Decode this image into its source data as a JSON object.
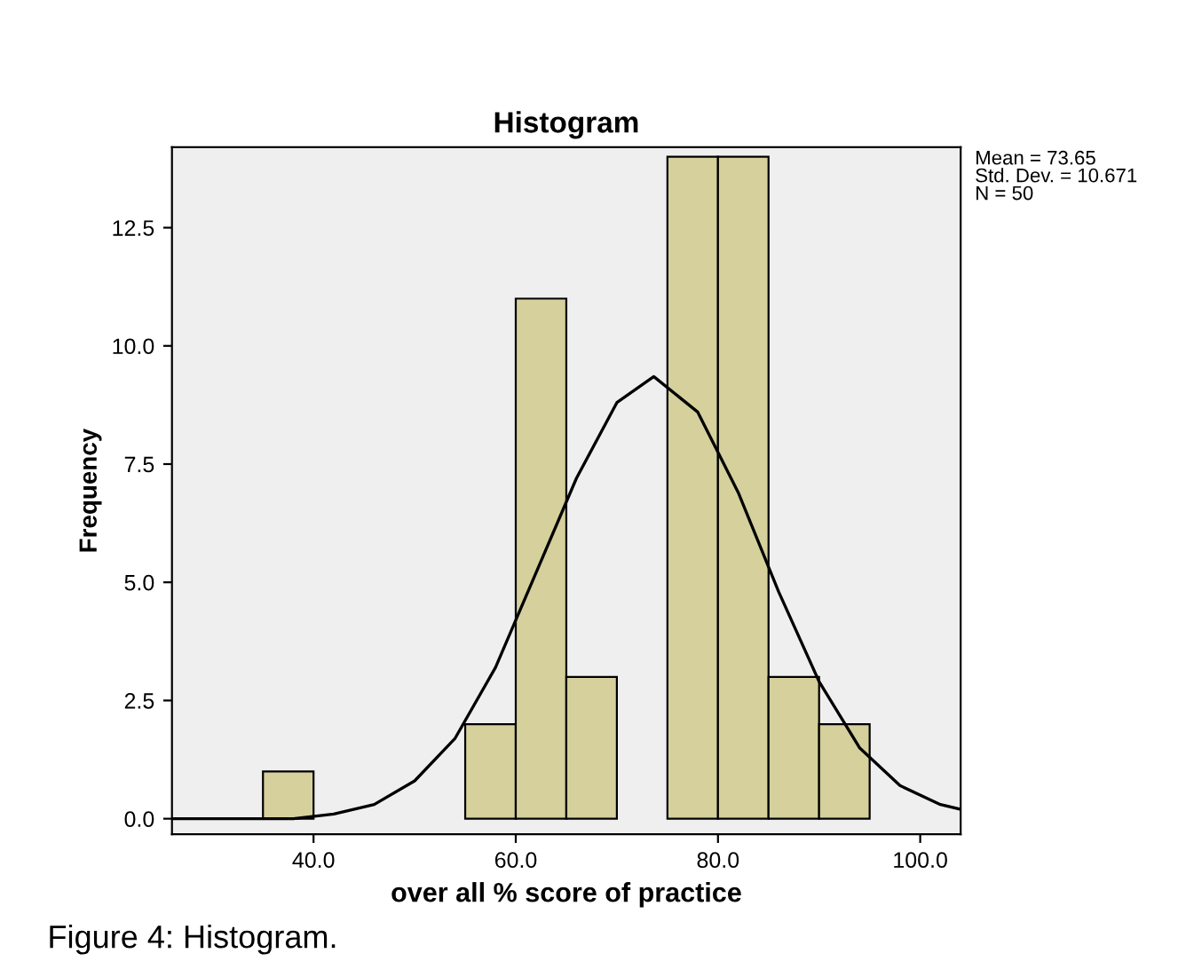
{
  "chart_data": {
    "type": "histogram",
    "title": "Histogram",
    "xlabel": "over all % score of practice",
    "ylabel": "Frequency",
    "bins": [
      35,
      40,
      45,
      50,
      55,
      60,
      65,
      70,
      75,
      80,
      85,
      90,
      95
    ],
    "values": [
      1,
      0,
      0,
      0,
      2,
      11,
      3,
      0,
      14,
      14,
      3,
      2
    ],
    "color": "#d5d09c",
    "xlim": [
      26,
      104
    ],
    "ylim": [
      -0.33,
      14.2
    ],
    "xticks": [
      {
        "value": 40,
        "label": "40.0"
      },
      {
        "value": 60,
        "label": "60.0"
      },
      {
        "value": 80,
        "label": "80.0"
      },
      {
        "value": 100,
        "label": "100.0"
      }
    ],
    "yticks": [
      {
        "value": 0,
        "label": "0.0"
      },
      {
        "value": 2.5,
        "label": "2.5"
      },
      {
        "value": 5,
        "label": "5.0"
      },
      {
        "value": 7.5,
        "label": "7.5"
      },
      {
        "value": 10,
        "label": "10.0"
      },
      {
        "value": 12.5,
        "label": "12.5"
      }
    ],
    "series": [
      {
        "type": "line",
        "color": "#000000",
        "x": [
          26,
          30,
          34,
          38,
          42,
          46,
          50,
          54,
          58,
          62,
          66,
          70,
          73.65,
          78,
          82,
          86,
          90,
          94,
          98,
          102,
          104
        ],
        "values": [
          0.0,
          0.0,
          0.0,
          0.0,
          0.1,
          0.3,
          0.8,
          1.7,
          3.2,
          5.2,
          7.2,
          8.8,
          9.35,
          8.6,
          6.9,
          4.8,
          2.9,
          1.5,
          0.7,
          0.3,
          0.2
        ]
      }
    ],
    "annotations": [
      "Mean = 73.65\nStd. Dev. = 10.671\nN = 50",
      "Figure 4: Histogram."
    ],
    "grid": false,
    "legend": false
  }
}
